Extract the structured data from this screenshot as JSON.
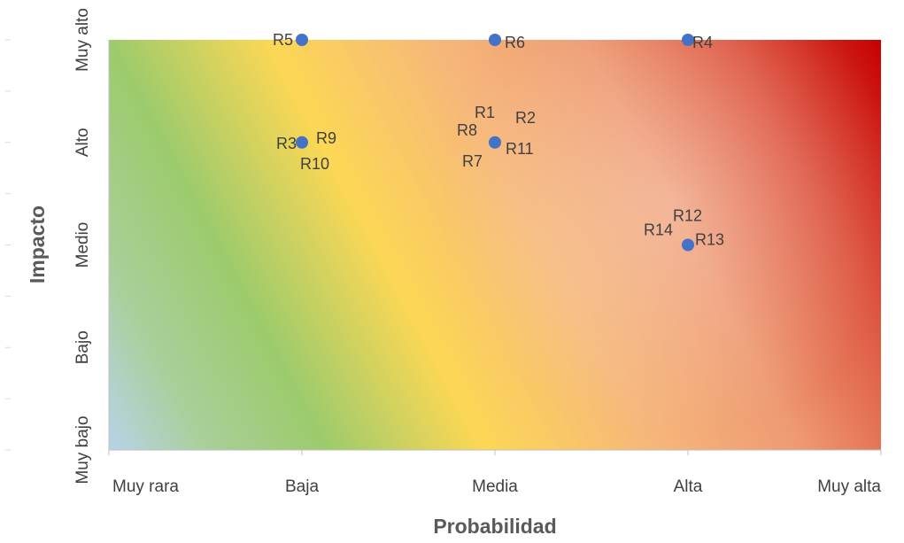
{
  "chart_data": {
    "type": "scatter",
    "xlabel": "Probabilidad",
    "ylabel": "Impacto",
    "x_categories": [
      "Muy rara",
      "Baja",
      "Media",
      "Alta",
      "Muy alta"
    ],
    "y_categories": [
      "Muy bajo",
      "Bajo",
      "Medio",
      "Alto",
      "Muy alto"
    ],
    "xlim": [
      1,
      5
    ],
    "ylim": [
      1,
      5
    ],
    "grid": false,
    "background": "heatmap gradient green-yellow-orange-red (low risk bottom-left, high risk top-right)",
    "points": [
      {
        "x": 2,
        "y": 5,
        "labels": [
          "R5"
        ]
      },
      {
        "x": 3,
        "y": 5,
        "labels": [
          "R6"
        ]
      },
      {
        "x": 4,
        "y": 5,
        "labels": [
          "R4"
        ]
      },
      {
        "x": 2,
        "y": 4,
        "labels": [
          "R3",
          "R9",
          "R10"
        ]
      },
      {
        "x": 3,
        "y": 4,
        "labels": [
          "R1",
          "R2",
          "R8",
          "R11",
          "R7"
        ]
      },
      {
        "x": 4,
        "y": 3,
        "labels": [
          "R12",
          "R14",
          "R13"
        ]
      }
    ],
    "colors": {
      "marker": "#4472c4",
      "green": "#92c86a",
      "yellow": "#ffd54f",
      "orange": "#f4a66e",
      "red": "#c00000",
      "lightblue": "#b8d4e8"
    }
  }
}
